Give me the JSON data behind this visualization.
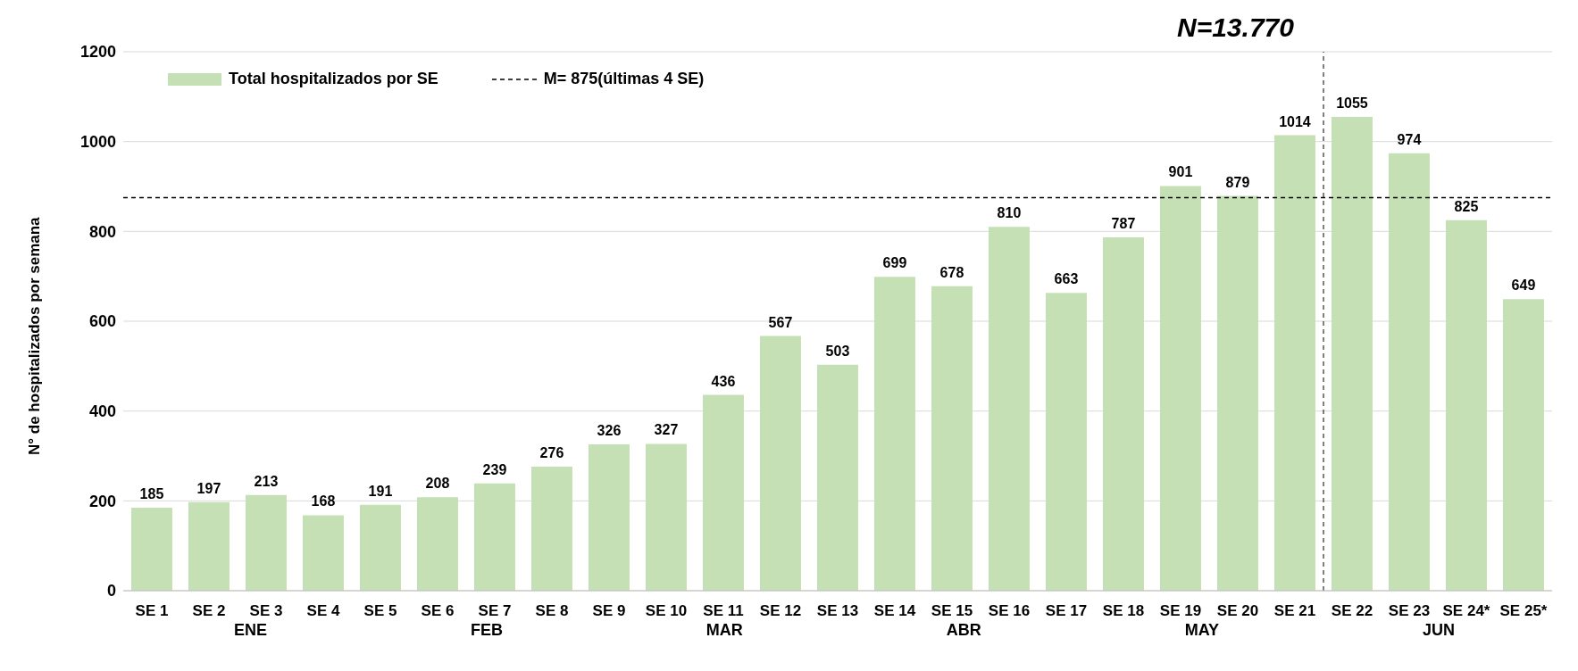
{
  "chart_data": {
    "type": "bar",
    "categories": [
      "SE 1",
      "SE 2",
      "SE 3",
      "SE 4",
      "SE 5",
      "SE 6",
      "SE 7",
      "SE 8",
      "SE 9",
      "SE 10",
      "SE 11",
      "SE 12",
      "SE 13",
      "SE 14",
      "SE 15",
      "SE 16",
      "SE 17",
      "SE 18",
      "SE 19",
      "SE 20",
      "SE 21",
      "SE 22",
      "SE 23",
      "SE 24*",
      "SE 25*"
    ],
    "series": [
      {
        "name": "Total hospitalizados por SE",
        "color": "#c5e0b4",
        "values": [
          185,
          197,
          213,
          168,
          191,
          208,
          239,
          276,
          326,
          327,
          436,
          567,
          503,
          699,
          678,
          810,
          663,
          787,
          901,
          879,
          1014,
          1055,
          974,
          825,
          649
        ]
      }
    ],
    "ylabel": "N° de hospitalizados por semana",
    "ylim": [
      0,
      1200
    ],
    "yticks": [
      0,
      200,
      400,
      600,
      800,
      1000,
      1200
    ],
    "grid": "y",
    "legend": "top left",
    "data_labels": true,
    "ref_lines": [
      {
        "axis": "y",
        "value": 875,
        "label": "M= 875(últimas 4 SE)",
        "color": "#000000",
        "line_style": "dashed"
      },
      {
        "axis": "x",
        "value": "SE 22",
        "color": "#000000",
        "line_style": "dashed"
      }
    ],
    "annotations": [
      "N=13.770",
      "ENE",
      "FEB",
      "MAR",
      "ABR",
      "MAY",
      "JUN"
    ]
  }
}
